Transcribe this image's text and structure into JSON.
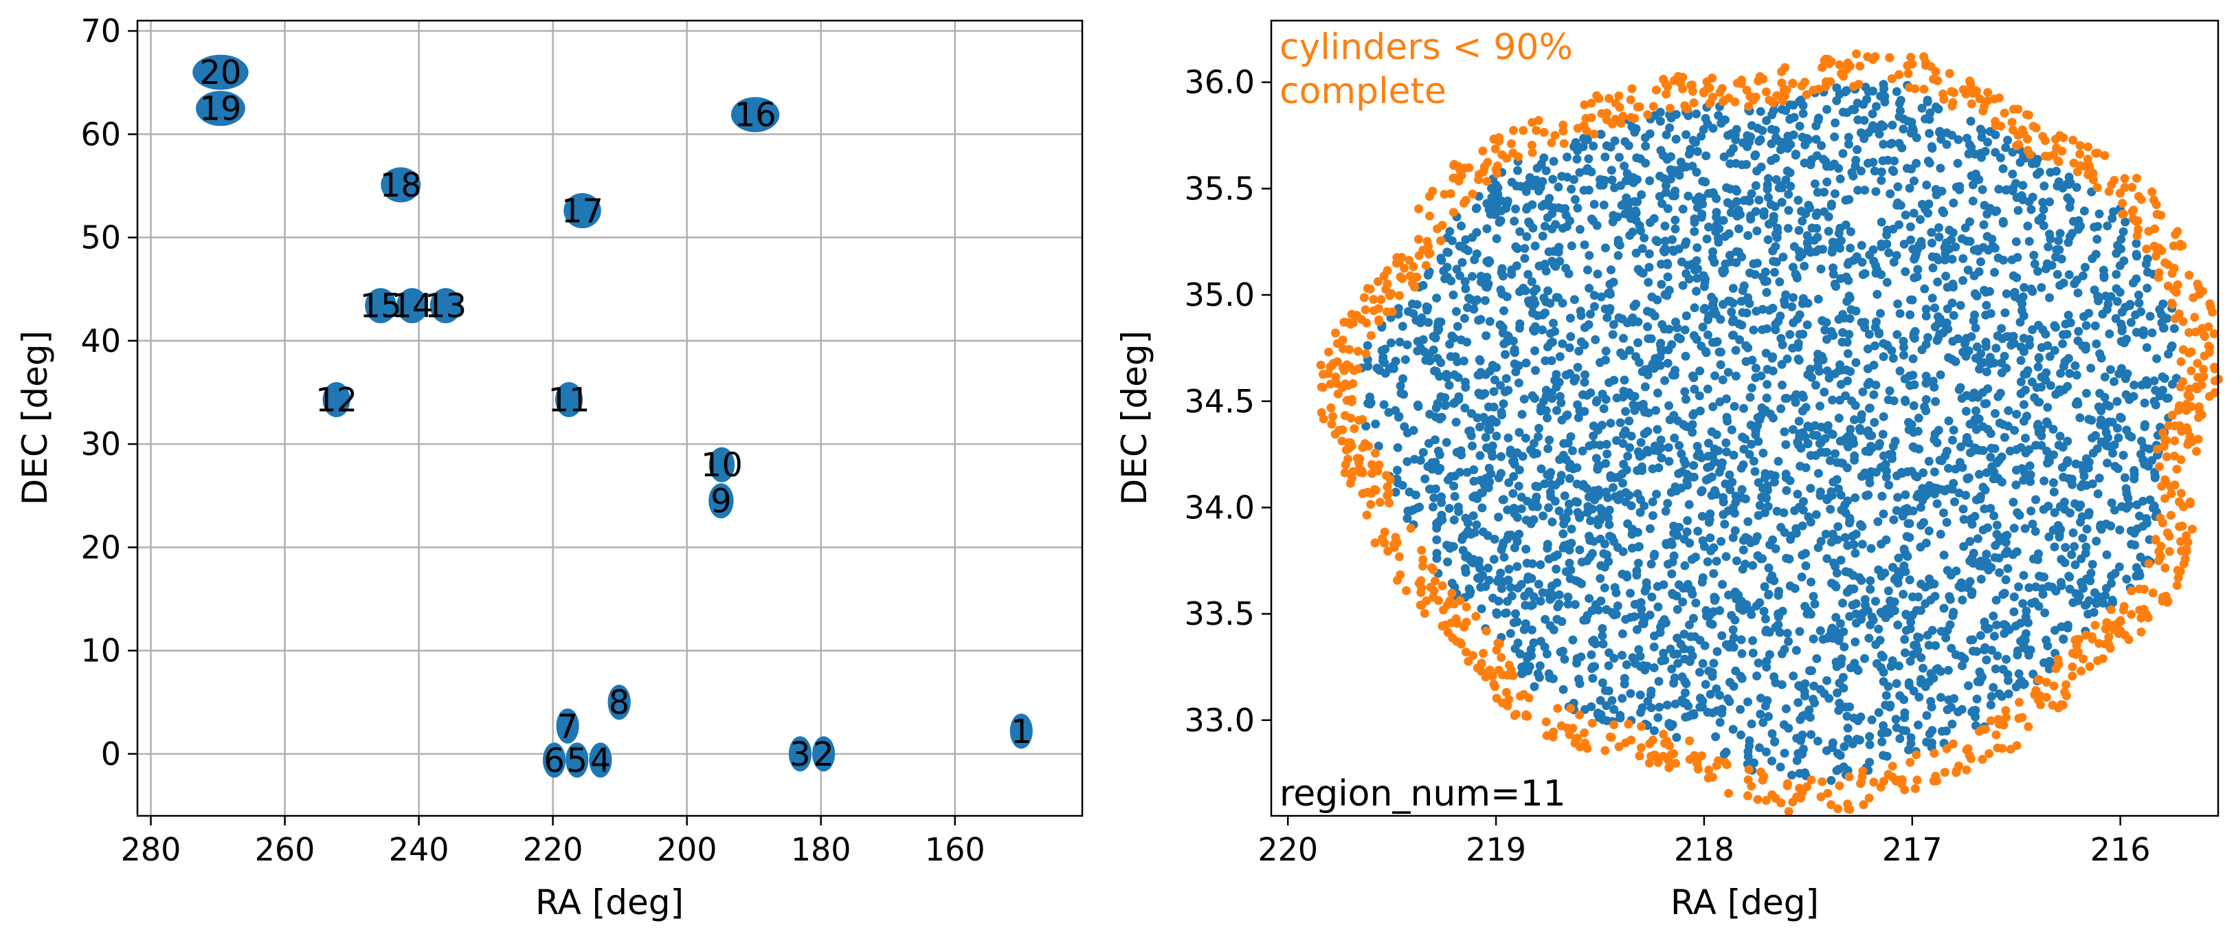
{
  "colors": {
    "blue": "#1f77b4",
    "orange": "#ff7f0e",
    "grid": "#b0b0b0",
    "axis": "#000000"
  },
  "chart_data": [
    {
      "type": "scatter",
      "title": "",
      "xlabel": "RA [deg]",
      "ylabel": "DEC [deg]",
      "xlim": [
        282,
        141
      ],
      "ylim": [
        -6,
        71
      ],
      "x_inverted": true,
      "grid": true,
      "xticks": [
        280,
        260,
        240,
        220,
        200,
        180,
        160
      ],
      "yticks": [
        0,
        10,
        20,
        30,
        40,
        50,
        60,
        70
      ],
      "xtick_labels": [
        "280",
        "260",
        "240",
        "220",
        "200",
        "180",
        "160"
      ],
      "ytick_labels": [
        "0",
        "10",
        "20",
        "30",
        "40",
        "50",
        "60",
        "70"
      ],
      "regions": [
        {
          "label": "1",
          "ra": 150.1,
          "dec": 2.2
        },
        {
          "label": "2",
          "ra": 179.6,
          "dec": 0.0
        },
        {
          "label": "3",
          "ra": 183.1,
          "dec": 0.0
        },
        {
          "label": "4",
          "ra": 212.9,
          "dec": -0.6
        },
        {
          "label": "5",
          "ra": 216.4,
          "dec": -0.6
        },
        {
          "label": "6",
          "ra": 219.8,
          "dec": -0.6
        },
        {
          "label": "7",
          "ra": 217.8,
          "dec": 2.7
        },
        {
          "label": "8",
          "ra": 210.1,
          "dec": 5.0
        },
        {
          "label": "9",
          "ra": 194.9,
          "dec": 24.5
        },
        {
          "label": "10",
          "ra": 194.8,
          "dec": 28.0
        },
        {
          "label": "11",
          "ra": 217.6,
          "dec": 34.3
        },
        {
          "label": "12",
          "ra": 252.3,
          "dec": 34.3
        },
        {
          "label": "13",
          "ra": 236.0,
          "dec": 43.4
        },
        {
          "label": "14",
          "ra": 241.0,
          "dec": 43.4
        },
        {
          "label": "15",
          "ra": 245.7,
          "dec": 43.4
        },
        {
          "label": "16",
          "ra": 189.8,
          "dec": 61.9
        },
        {
          "label": "17",
          "ra": 215.6,
          "dec": 52.6
        },
        {
          "label": "18",
          "ra": 242.7,
          "dec": 55.1
        },
        {
          "label": "19",
          "ra": 269.6,
          "dec": 62.5
        },
        {
          "label": "20",
          "ra": 269.6,
          "dec": 66.0
        }
      ],
      "region_radius_deg": 1.7,
      "marker_color": "#1f77b4"
    },
    {
      "type": "scatter",
      "title": "",
      "xlabel": "RA [deg]",
      "ylabel": "DEC [deg]",
      "xlim": [
        220.08,
        215.53
      ],
      "ylim": [
        32.55,
        36.29
      ],
      "x_inverted": true,
      "grid": false,
      "xticks": [
        220,
        219,
        218,
        217,
        216
      ],
      "yticks": [
        33.0,
        33.5,
        34.0,
        34.5,
        35.0,
        35.5,
        36.0
      ],
      "xtick_labels": [
        "220",
        "219",
        "218",
        "217",
        "216"
      ],
      "ytick_labels": [
        "33.0",
        "33.5",
        "34.0",
        "34.5",
        "35.0",
        "35.5",
        "36.0"
      ],
      "annotation_top_left": "cylinders $<90\\%$ complete",
      "annotation_lines": [
        "cylinders  < 90%",
        "complete"
      ],
      "annotation_bottom_left": "region_num=11",
      "footprint": {
        "center_ra": 217.62,
        "center_dec": 34.4,
        "radius_deg": 1.72
      },
      "series": [
        {
          "name": "",
          "color": "#1f77b4",
          "approx_points": 3800,
          "description_role": "complete cylinders (interior)"
        },
        {
          "name": "",
          "color": "#ff7f0e",
          "approx_points": 900,
          "description_role": "incomplete cylinders (edge ring)"
        }
      ],
      "edge_band_deg": 0.12
    }
  ]
}
